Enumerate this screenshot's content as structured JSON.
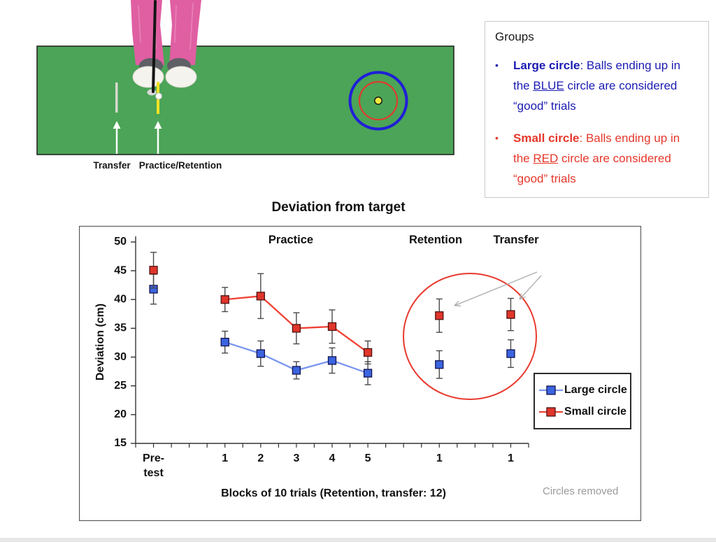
{
  "scene": {
    "labels": {
      "transfer": "Transfer",
      "practice_retention": "Practice/Retention"
    },
    "colors": {
      "green": "#4ba457",
      "pants": "#df5fa2",
      "pants_light": "#ef93c6",
      "shoe_white": "#f5f3ee",
      "shoe_top": "#5f5f66",
      "club": "#141414",
      "transfer_tick": "#d9d8d0",
      "practice_tick": "#f2e224",
      "target_blue": "#1f1fd8",
      "target_red": "#e03c2e",
      "ball_yellow": "#f2ea3e",
      "arrow_white": "#ffffff"
    }
  },
  "groups": {
    "title": "Groups",
    "bullet": "•",
    "items": [
      {
        "bold": "Large circle",
        "pre": ": Balls ending up in the ",
        "underlined": "BLUE",
        "post": " circle are considered “good” trials",
        "color": "#1b1bb3"
      },
      {
        "bold": "Small circle",
        "pre": ": Balls ending up in the ",
        "underlined": "RED",
        "post": " circle are considered “good” trials",
        "color": "#e5382b"
      }
    ]
  },
  "chart_data": {
    "type": "line",
    "title": "Deviation from target",
    "ylabel": "Deviation (cm)",
    "xlabel": "Blocks of 10 trials (Retention, transfer: 12)",
    "ylim": [
      15,
      50
    ],
    "ytick_interval": 5,
    "grid": false,
    "phases": [
      "Practice",
      "Retention",
      "Transfer"
    ],
    "categories": [
      "Pre-\ntest",
      "1",
      "2",
      "3",
      "4",
      "5",
      "1",
      "1"
    ],
    "slots": [
      1,
      3,
      4,
      5,
      6,
      7,
      9,
      11
    ],
    "n_slots": 11,
    "connected_indices": [
      1,
      2,
      3,
      4,
      5
    ],
    "series": [
      {
        "name": "Large circle",
        "color": "#3b64e0",
        "line_color": "#7a96f0",
        "marker_border": "#13134f",
        "values": [
          41.8,
          32.6,
          30.6,
          27.7,
          29.4,
          27.2,
          28.7,
          30.6
        ],
        "errors": [
          2.6,
          1.9,
          2.2,
          1.5,
          2.2,
          2.0,
          2.4,
          2.4
        ]
      },
      {
        "name": "Small circle",
        "color": "#e0352a",
        "line_color": "#ef4133",
        "marker_border": "#4f1210",
        "values": [
          45.1,
          40.0,
          40.6,
          35.0,
          35.3,
          30.8,
          37.2,
          37.4
        ],
        "errors": [
          3.1,
          2.1,
          3.9,
          2.7,
          2.9,
          2.0,
          2.9,
          2.8
        ]
      }
    ],
    "errorbar_color": "#4a4a4a",
    "annotation": {
      "text": "Circles removed",
      "color": "#9a9a9a",
      "circle_color": "#e8392e"
    },
    "legend": [
      "Large circle",
      "Small circle"
    ],
    "legend_position": "right-bottom"
  }
}
